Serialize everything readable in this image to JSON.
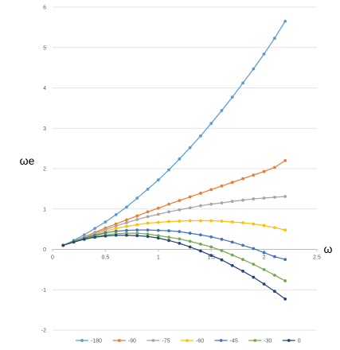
{
  "chart_data": {
    "type": "line",
    "xlabel": "ω",
    "ylabel": "ωe",
    "xlim": [
      0,
      2.5
    ],
    "ylim": [
      -2,
      6
    ],
    "x_ticks": [
      "0",
      "0.5",
      "1",
      "1.5",
      "2",
      "2.5"
    ],
    "y_ticks": [
      "-2",
      "-1",
      "0",
      "1",
      "2",
      "3",
      "4",
      "5",
      "6"
    ],
    "grid": "horizontal",
    "legend_position": "bottom",
    "x": [
      0.1,
      0.2,
      0.3,
      0.4,
      0.5,
      0.6,
      0.7,
      0.8,
      0.9,
      1.0,
      1.1,
      1.2,
      1.3,
      1.4,
      1.5,
      1.6,
      1.7,
      1.8,
      1.9,
      2.0,
      2.1,
      2.2
    ],
    "series": [
      {
        "name": "-180",
        "color": "#5B9BD5",
        "values": [
          0.1,
          0.22,
          0.36,
          0.52,
          0.68,
          0.86,
          1.05,
          1.27,
          1.49,
          1.72,
          1.97,
          2.24,
          2.52,
          2.81,
          3.12,
          3.44,
          3.77,
          4.12,
          4.47,
          4.84,
          5.23,
          5.65
        ]
      },
      {
        "name": "-90",
        "color": "#ED7D31",
        "values": [
          0.1,
          0.2,
          0.31,
          0.42,
          0.53,
          0.63,
          0.73,
          0.83,
          0.93,
          1.02,
          1.12,
          1.21,
          1.3,
          1.39,
          1.48,
          1.57,
          1.66,
          1.75,
          1.84,
          1.93,
          2.03,
          2.2
        ]
      },
      {
        "name": "-75",
        "color": "#A5A5A5",
        "values": [
          0.1,
          0.2,
          0.3,
          0.4,
          0.49,
          0.58,
          0.66,
          0.74,
          0.81,
          0.87,
          0.93,
          0.98,
          1.03,
          1.08,
          1.12,
          1.15,
          1.19,
          1.22,
          1.25,
          1.27,
          1.29,
          1.31
        ]
      },
      {
        "name": "-60",
        "color": "#FFC000",
        "values": [
          0.1,
          0.2,
          0.29,
          0.37,
          0.45,
          0.52,
          0.57,
          0.61,
          0.65,
          0.67,
          0.69,
          0.7,
          0.71,
          0.71,
          0.71,
          0.7,
          0.68,
          0.66,
          0.63,
          0.59,
          0.54,
          0.48
        ]
      },
      {
        "name": "-45",
        "color": "#4472C4",
        "values": [
          0.1,
          0.2,
          0.28,
          0.35,
          0.41,
          0.45,
          0.47,
          0.48,
          0.48,
          0.47,
          0.46,
          0.44,
          0.4,
          0.36,
          0.31,
          0.25,
          0.18,
          0.1,
          0.02,
          -0.08,
          -0.18,
          -0.25
        ]
      },
      {
        "name": "-30",
        "color": "#70AD47",
        "values": [
          0.1,
          0.19,
          0.26,
          0.32,
          0.36,
          0.39,
          0.4,
          0.4,
          0.38,
          0.34,
          0.3,
          0.26,
          0.2,
          0.13,
          0.06,
          -0.03,
          -0.14,
          -0.25,
          -0.37,
          -0.5,
          -0.64,
          -0.78
        ]
      },
      {
        "name": "0",
        "color": "#264478",
        "values": [
          0.1,
          0.18,
          0.25,
          0.3,
          0.33,
          0.35,
          0.35,
          0.34,
          0.32,
          0.28,
          0.22,
          0.15,
          0.06,
          -0.04,
          -0.15,
          -0.26,
          -0.4,
          -0.54,
          -0.69,
          -0.86,
          -1.04,
          -1.23
        ]
      }
    ]
  }
}
